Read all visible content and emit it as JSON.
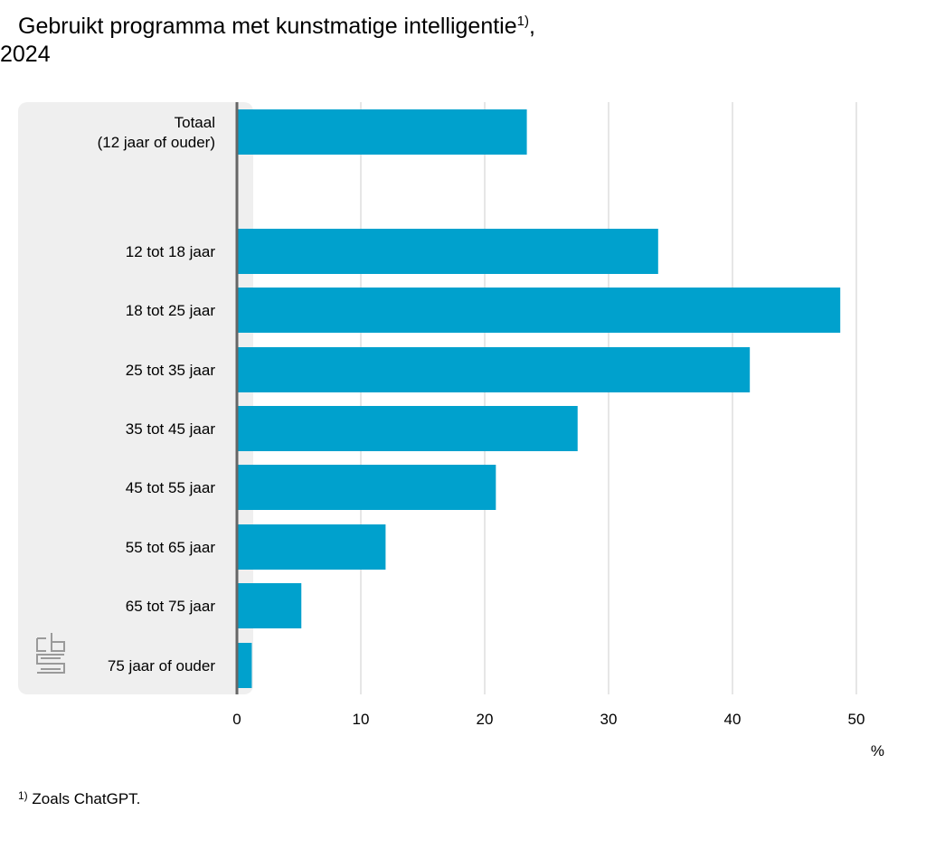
{
  "title": {
    "line1": "Gebruikt programma met kunstmatige intelligentie",
    "marker": "1)",
    "line2_suffix": ",",
    "line2": "2024"
  },
  "footnote": {
    "marker": "1)",
    "text": "Zoals ChatGPT."
  },
  "colors": {
    "bar": "#00a1cd",
    "label_panel": "#efefef",
    "grid": "#cccccc",
    "axis": "#666666"
  },
  "chart_data": {
    "type": "bar",
    "orientation": "horizontal",
    "categories": [
      [
        "Totaal",
        "(12 jaar of ouder)"
      ],
      [
        "12 tot 18 jaar"
      ],
      [
        "18 tot 25 jaar"
      ],
      [
        "25 tot 35 jaar"
      ],
      [
        "35 tot 45 jaar"
      ],
      [
        "45 tot 55 jaar"
      ],
      [
        "55 tot 65 jaar"
      ],
      [
        "65 tot 75 jaar"
      ],
      [
        "75 jaar of ouder"
      ]
    ],
    "values": [
      23.4,
      34.0,
      48.7,
      41.4,
      27.5,
      20.9,
      12.0,
      5.2,
      1.2
    ],
    "xticks": [
      0,
      10,
      20,
      30,
      40,
      50
    ],
    "xlim": [
      0,
      52.5
    ],
    "xlabel": "%",
    "grid": "vertical",
    "logo": "cbs-logo"
  }
}
